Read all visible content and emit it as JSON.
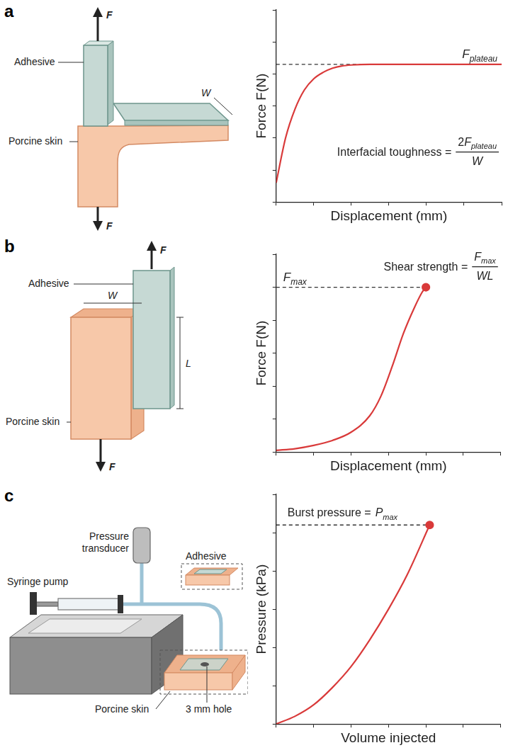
{
  "chart_data": [
    {
      "panel": "a",
      "type": "line",
      "color": "#d93a3a",
      "marker": "none",
      "xlabel": "Displacement (mm)",
      "ylabel": "Force F(N)",
      "x": [
        0,
        0.25,
        0.5,
        0.75,
        1,
        1.25,
        1.5,
        1.75,
        2,
        2.5,
        3,
        4,
        5,
        6
      ],
      "values": [
        0.6,
        2.0,
        2.9,
        3.5,
        3.85,
        4.05,
        4.18,
        4.25,
        4.28,
        4.3,
        4.3,
        4.3,
        4.3,
        4.3
      ],
      "xlim": [
        0,
        6
      ],
      "ylim": [
        0,
        6
      ],
      "xticks": [
        0,
        1,
        2,
        3,
        4,
        5,
        6
      ],
      "yticks": [
        0,
        1,
        2,
        3,
        4,
        5,
        6
      ],
      "tick_labels": false,
      "grid": false,
      "reference_line": 4.3,
      "reference_label": {
        "main": "F",
        "sub": "plateau"
      },
      "formula": {
        "lhs": "Interfacial toughness =",
        "rhs": {
          "main": "2F",
          "sub": "plateau"
        },
        "denominator": {
          "main": "W"
        }
      }
    },
    {
      "panel": "b",
      "type": "line",
      "color": "#d93a3a",
      "marker": "end_point",
      "xlabel": "Displacement (mm)",
      "ylabel": "Force F(N)",
      "x": [
        0,
        0.5,
        1,
        1.5,
        2,
        2.5,
        2.8,
        3.1,
        3.4,
        3.7,
        3.9,
        4.0
      ],
      "values": [
        0.05,
        0.1,
        0.2,
        0.35,
        0.6,
        1.1,
        1.7,
        2.6,
        3.6,
        4.4,
        4.85,
        5.0
      ],
      "xlim": [
        0,
        6
      ],
      "ylim": [
        0,
        6
      ],
      "xticks": [
        0,
        1,
        2,
        3,
        4,
        5,
        6
      ],
      "yticks": [
        0,
        1,
        2,
        3,
        4,
        5,
        6
      ],
      "tick_labels": false,
      "grid": false,
      "reference_line": 5.0,
      "reference_label": {
        "main": "F",
        "sub": "max"
      },
      "formula": {
        "lhs": "Shear strength =",
        "rhs": {
          "main": "F",
          "sub": "max"
        },
        "denominator": {
          "main": "WL"
        }
      }
    },
    {
      "panel": "c",
      "type": "line",
      "color": "#d93a3a",
      "marker": "end_point",
      "xlabel": "Volume injected",
      "ylabel": "Pressure (kPa)",
      "x": [
        0,
        0.5,
        1,
        1.5,
        2,
        2.5,
        3,
        3.5,
        4.1
      ],
      "values": [
        0,
        0.2,
        0.5,
        0.95,
        1.5,
        2.2,
        3.0,
        3.9,
        5.2
      ],
      "xlim": [
        0,
        6
      ],
      "ylim": [
        0,
        6
      ],
      "xticks": [
        0,
        1,
        2,
        3,
        4,
        5,
        6
      ],
      "yticks": [
        0,
        1,
        2,
        3,
        4,
        5,
        6
      ],
      "tick_labels": false,
      "grid": false,
      "reference_line": 5.2,
      "formula": {
        "lhs": "Burst pressure =",
        "rhs": {
          "main": "P",
          "sub": "max"
        }
      }
    }
  ],
  "diagrams": [
    {
      "labels": {
        "adhesive": "Adhesive",
        "skin": "Porcine skin",
        "force": "F",
        "width": "W"
      }
    },
    {
      "labels": {
        "adhesive": "Adhesive",
        "skin": "Porcine skin",
        "force": "F",
        "width": "W",
        "length": "L"
      }
    },
    {
      "labels": {
        "transducer": "Pressure transducer",
        "pump": "Syringe pump",
        "adhesive": "Adhesive",
        "skin": "Porcine skin",
        "hole": "3 mm hole"
      }
    }
  ]
}
